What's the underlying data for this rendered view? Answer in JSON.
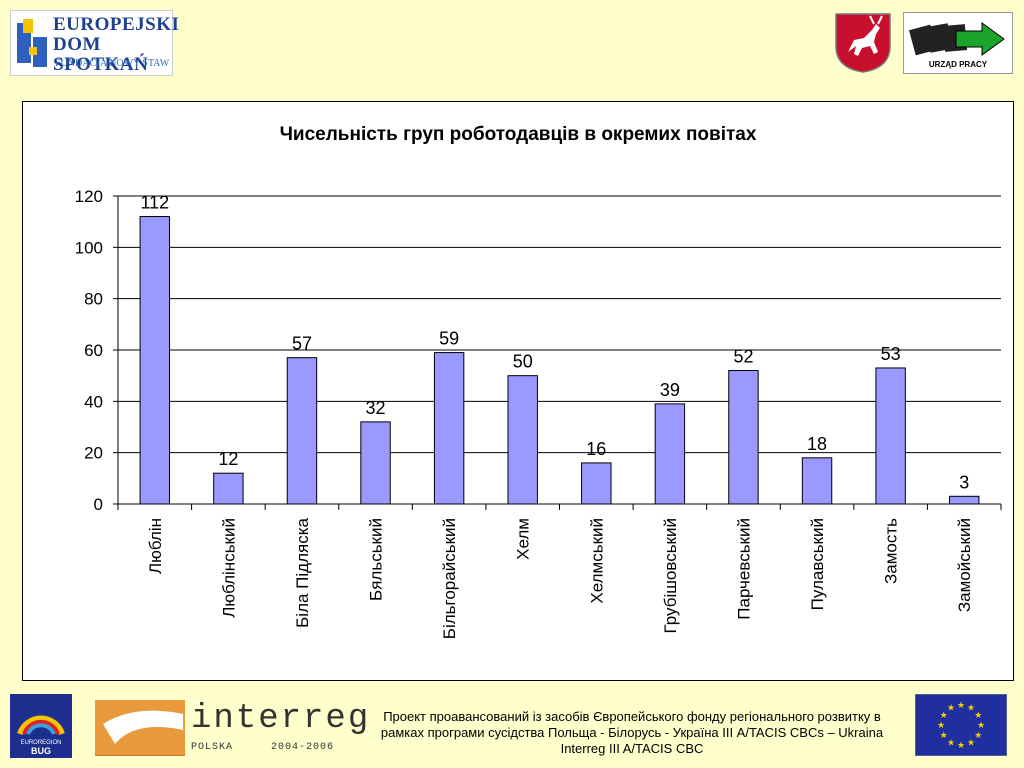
{
  "header": {
    "eds_logo": {
      "line1": "EUROPEJSKI",
      "line2": "DOM SPOTKAŃ",
      "line3": "FUNDACJA NOWY STAW"
    },
    "urzad_logo": {
      "label": "URZĄD PRACY"
    }
  },
  "chart_data": {
    "type": "bar",
    "title": "Чисельність груп роботодавців в окремих повітах",
    "xlabel": "",
    "ylabel": "",
    "ylim": [
      0,
      120
    ],
    "yticks": [
      0,
      20,
      40,
      60,
      80,
      100,
      120
    ],
    "grid": true,
    "categories": [
      "Люблін",
      "Люблінський",
      "Біла Підляска",
      "Бяльський",
      "Більгорайський",
      "Хелм",
      "Хелмський",
      "Грубішовський",
      "Парчевський",
      "Пулавський",
      "Замость",
      "Замойський"
    ],
    "values": [
      112,
      12,
      57,
      32,
      59,
      50,
      16,
      39,
      52,
      18,
      53,
      3
    ],
    "bar_color": "#9999ff",
    "bar_stroke": "#000000"
  },
  "footer": {
    "interreg_word": "interreg",
    "interreg_country": "POLSKA",
    "interreg_years": "2004-2006",
    "euroregion_line1": "EUROREGION",
    "euroregion_line2": "BUG",
    "project_text": "Проект проавансований із засобів Європейського фонду регіонального розвитку в рамках програми сусідства Польща - Білорусь - Україна ІІІ A/TACIS CBCs – Ukraina Interreg III A/TACIS CBC"
  }
}
